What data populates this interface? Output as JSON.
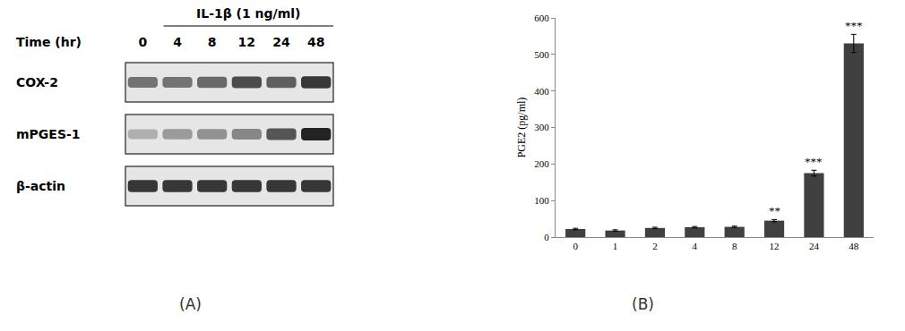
{
  "panel_labels": [
    "(A)",
    "(B)"
  ],
  "blot": {
    "treatment": "IL-1β (1 ng/ml)",
    "time_label": "Time (hr)",
    "lanes": [
      "0",
      "4",
      "8",
      "12",
      "24",
      "48"
    ],
    "rows": [
      {
        "label": "COX-2",
        "intensity": [
          0.55,
          0.55,
          0.6,
          0.75,
          0.65,
          0.85
        ]
      },
      {
        "label": "mPGES-1",
        "intensity": [
          0.25,
          0.35,
          0.4,
          0.45,
          0.7,
          0.95
        ]
      },
      {
        "label": "β-actin",
        "intensity": [
          0.85,
          0.85,
          0.85,
          0.85,
          0.85,
          0.85
        ]
      }
    ]
  },
  "chart_data": {
    "type": "bar",
    "y_label": "PGE2 (pg/ml)",
    "categories": [
      "0",
      "1",
      "2",
      "4",
      "8",
      "12",
      "24",
      "48"
    ],
    "values": [
      22,
      18,
      25,
      27,
      28,
      45,
      175,
      530
    ],
    "errors": [
      2,
      2,
      2,
      2,
      2,
      3,
      8,
      25
    ],
    "color": "#404040",
    "ylim": [
      0,
      600
    ],
    "yticks": [
      0,
      100,
      200,
      300,
      400,
      500,
      600
    ],
    "grid": false,
    "annotations": [
      {
        "category": "12",
        "text": "**"
      },
      {
        "category": "24",
        "text": "***"
      },
      {
        "category": "48",
        "text": "***"
      }
    ]
  }
}
